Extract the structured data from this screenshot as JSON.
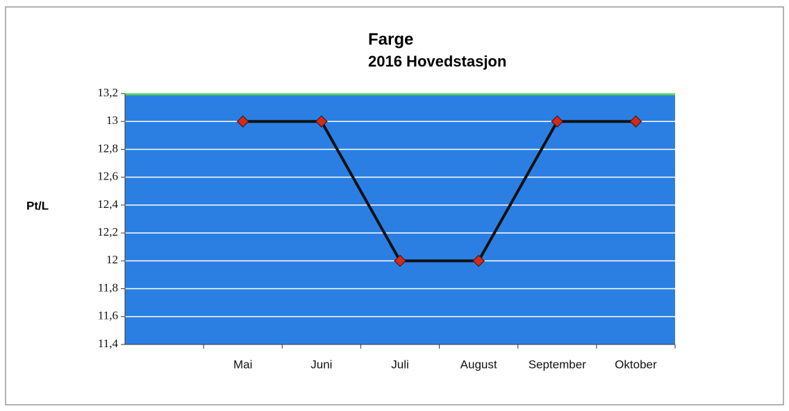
{
  "chart_data": {
    "type": "line",
    "title": "Farge",
    "subtitle": "2016 Hovedstasjon",
    "y_label": "Pt/L",
    "categories": [
      null,
      "Mai",
      "Juni",
      "Juli",
      "August",
      "September",
      "Oktober"
    ],
    "series": [
      {
        "name": "Farge",
        "color": "#111111",
        "marker_color": "#d42a1c",
        "values": [
          null,
          13,
          13,
          12,
          12,
          13,
          13
        ]
      }
    ],
    "ylim": [
      11.4,
      13.2
    ],
    "yticks": [
      {
        "value": 11.4,
        "label": "11,4"
      },
      {
        "value": 11.6,
        "label": "11,6"
      },
      {
        "value": 11.8,
        "label": "11,8"
      },
      12,
      {
        "value": 12.2,
        "label": "12,2"
      },
      {
        "value": 12.4,
        "label": "12,4"
      },
      {
        "value": 12.6,
        "label": "12,6"
      },
      {
        "value": 12.8,
        "label": "12,8"
      },
      13,
      {
        "value": 13.2,
        "label": "13,2"
      }
    ],
    "grid": true,
    "plot_color": "#2b7fe3"
  }
}
